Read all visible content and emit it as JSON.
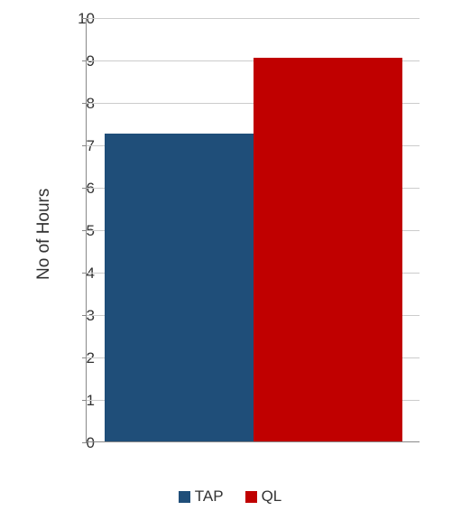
{
  "chart": {
    "type": "bar",
    "ylabel": "No of Hours",
    "label_fontsize": 19,
    "ylim": [
      0,
      10
    ],
    "ytick_step": 1,
    "yticks": [
      0,
      1,
      2,
      3,
      4,
      5,
      6,
      7,
      8,
      9,
      10
    ],
    "grid_color": "#cccccc",
    "axis_color": "#888888",
    "background_color": "#ffffff",
    "tick_fontsize": 17,
    "bar_gap": 0,
    "series": [
      {
        "name": "TAP",
        "value": 7.25,
        "color": "#1f4e79"
      },
      {
        "name": "QL",
        "value": 9.05,
        "color": "#c00000"
      }
    ],
    "legend": {
      "position": "bottom",
      "fontsize": 17,
      "items": [
        {
          "label": "TAP",
          "color": "#1f4e79"
        },
        {
          "label": "QL",
          "color": "#c00000"
        }
      ]
    }
  }
}
